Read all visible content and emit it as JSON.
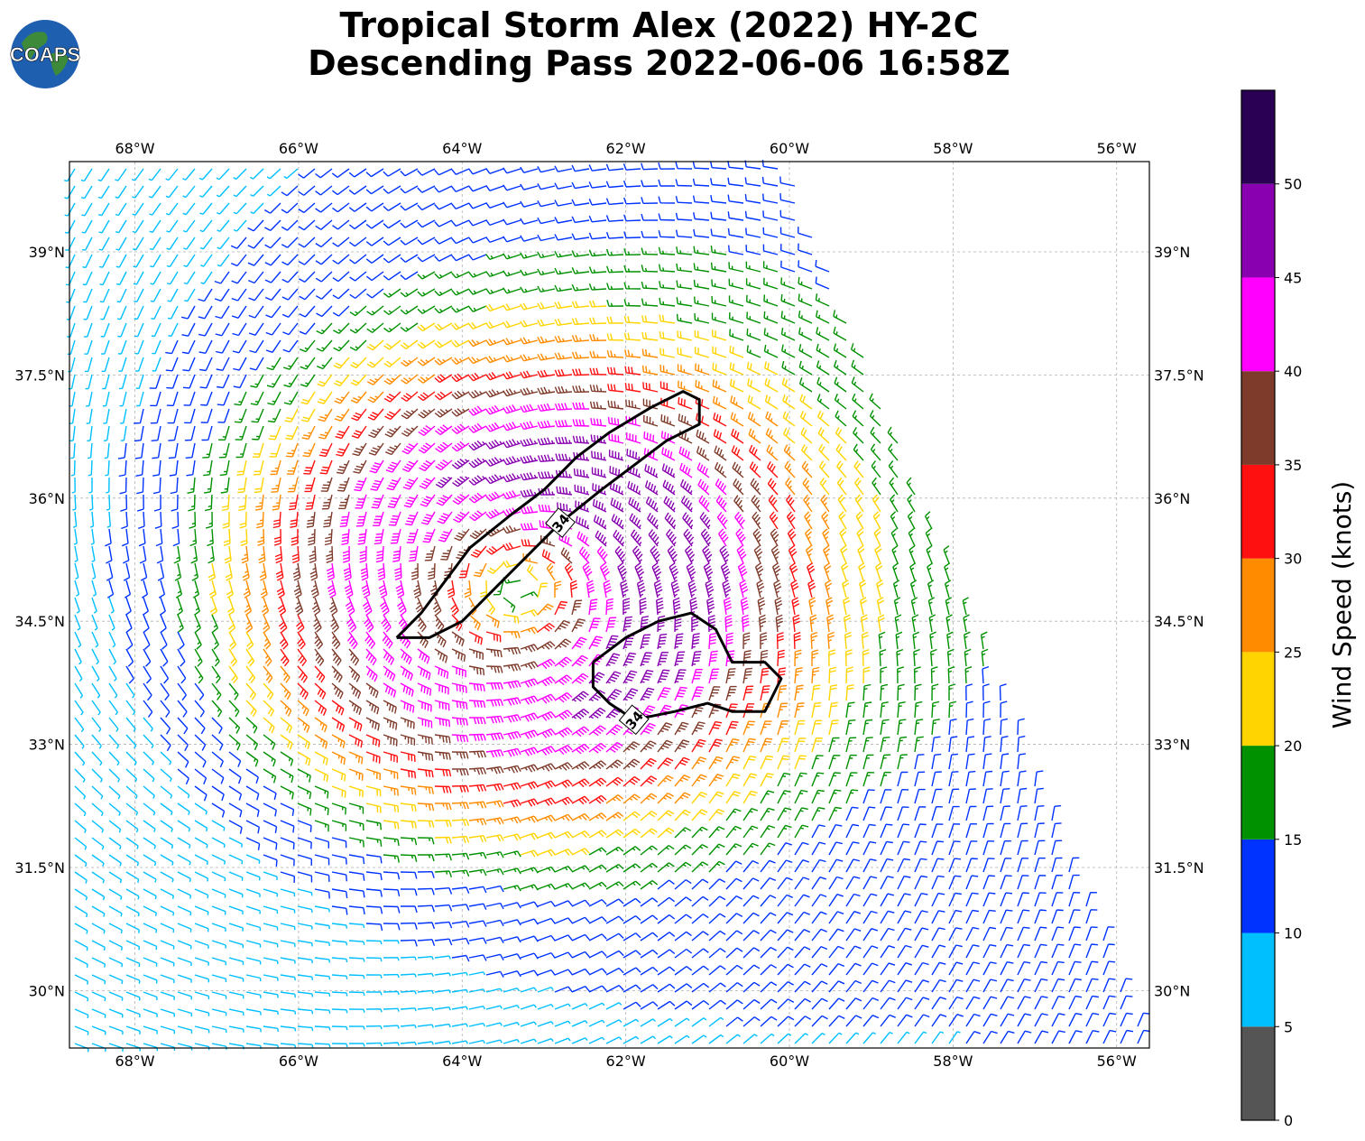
{
  "header": {
    "title_line1": "Tropical Storm Alex (2022) HY-2C",
    "title_line2": "Descending Pass 2022-06-06 16:58Z",
    "logo_text": "COAPS"
  },
  "map": {
    "lon_labels": [
      "68°W",
      "66°W",
      "64°W",
      "62°W",
      "60°W",
      "58°W",
      "56°W"
    ],
    "lat_labels": [
      "39°N",
      "37.5°N",
      "36°N",
      "34.5°N",
      "33°N",
      "31.5°N",
      "30°N"
    ],
    "lon_range": [
      -68.8,
      -55.6
    ],
    "lat_range": [
      29.3,
      40.1
    ],
    "storm_center": {
      "lon": -63.3,
      "lat": 34.9
    },
    "contour_label": "34",
    "contours": [
      {
        "label": "34",
        "path": [
          [
            -64.8,
            34.3
          ],
          [
            -64.5,
            34.6
          ],
          [
            -64.2,
            35.0
          ],
          [
            -63.9,
            35.4
          ],
          [
            -63.4,
            35.8
          ],
          [
            -63.0,
            36.1
          ],
          [
            -62.6,
            36.5
          ],
          [
            -62.2,
            36.8
          ],
          [
            -61.7,
            37.1
          ],
          [
            -61.3,
            37.3
          ],
          [
            -61.1,
            37.2
          ],
          [
            -61.1,
            36.9
          ],
          [
            -61.5,
            36.7
          ],
          [
            -61.9,
            36.4
          ],
          [
            -62.3,
            36.1
          ],
          [
            -62.8,
            35.7
          ],
          [
            -63.2,
            35.3
          ],
          [
            -63.6,
            34.9
          ],
          [
            -64.0,
            34.5
          ],
          [
            -64.4,
            34.3
          ],
          [
            -64.8,
            34.3
          ]
        ]
      },
      {
        "label": "34",
        "path": [
          [
            -62.4,
            34.0
          ],
          [
            -62.0,
            34.3
          ],
          [
            -61.6,
            34.5
          ],
          [
            -61.2,
            34.6
          ],
          [
            -60.9,
            34.4
          ],
          [
            -60.7,
            34.0
          ],
          [
            -60.3,
            34.0
          ],
          [
            -60.1,
            33.8
          ],
          [
            -60.3,
            33.4
          ],
          [
            -60.7,
            33.4
          ],
          [
            -61.0,
            33.5
          ],
          [
            -61.4,
            33.4
          ],
          [
            -61.9,
            33.3
          ],
          [
            -62.2,
            33.5
          ],
          [
            -62.4,
            33.7
          ],
          [
            -62.4,
            34.0
          ]
        ]
      }
    ]
  },
  "colorbar": {
    "label": "Wind Speed (knots)",
    "ticks": [
      "0",
      "5",
      "10",
      "15",
      "20",
      "25",
      "30",
      "35",
      "40",
      "45",
      "50"
    ],
    "bins": [
      {
        "min": 0,
        "max": 5,
        "color": "#555555"
      },
      {
        "min": 5,
        "max": 10,
        "color": "#00bfff"
      },
      {
        "min": 10,
        "max": 15,
        "color": "#0033ff"
      },
      {
        "min": 15,
        "max": 20,
        "color": "#009100"
      },
      {
        "min": 20,
        "max": 25,
        "color": "#ffd400"
      },
      {
        "min": 25,
        "max": 30,
        "color": "#ff8c00"
      },
      {
        "min": 30,
        "max": 35,
        "color": "#ff1010"
      },
      {
        "min": 35,
        "max": 40,
        "color": "#7e3a2a"
      },
      {
        "min": 40,
        "max": 45,
        "color": "#ff00ff"
      },
      {
        "min": 45,
        "max": 50,
        "color": "#8800b0"
      },
      {
        "min": 50,
        "max": 55,
        "color": "#2a0055"
      }
    ]
  }
}
